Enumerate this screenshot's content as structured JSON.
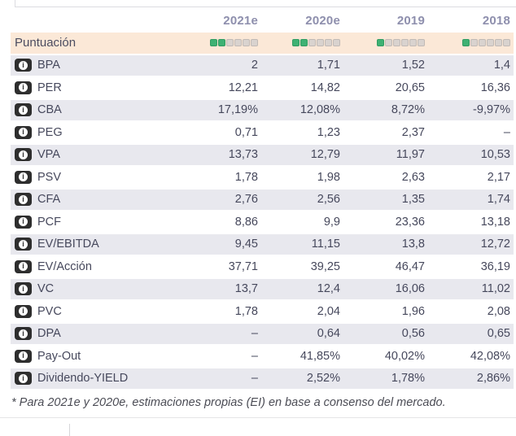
{
  "table": {
    "columns": [
      "2021e",
      "2020e",
      "2019",
      "2018"
    ],
    "score_row": {
      "label": "Puntuación",
      "max": 6,
      "scores": [
        2,
        2,
        1,
        1
      ]
    },
    "info_icon_glyph": "i",
    "rows": [
      {
        "label": "BPA",
        "values": [
          "2",
          "1,71",
          "1,52",
          "1,4"
        ]
      },
      {
        "label": "PER",
        "values": [
          "12,21",
          "14,82",
          "20,65",
          "16,36"
        ]
      },
      {
        "label": "CBA",
        "values": [
          "17,19%",
          "12,08%",
          "8,72%",
          "-9,97%"
        ]
      },
      {
        "label": "PEG",
        "values": [
          "0,71",
          "1,23",
          "2,37",
          "–"
        ]
      },
      {
        "label": "VPA",
        "values": [
          "13,73",
          "12,79",
          "11,97",
          "10,53"
        ]
      },
      {
        "label": "PSV",
        "values": [
          "1,78",
          "1,98",
          "2,63",
          "2,17"
        ]
      },
      {
        "label": "CFA",
        "values": [
          "2,76",
          "2,56",
          "1,35",
          "1,74"
        ]
      },
      {
        "label": "PCF",
        "values": [
          "8,86",
          "9,9",
          "23,36",
          "13,18"
        ]
      },
      {
        "label": "EV/EBITDA",
        "values": [
          "9,45",
          "11,15",
          "13,8",
          "12,72"
        ]
      },
      {
        "label": "EV/Acción",
        "values": [
          "37,71",
          "39,25",
          "46,47",
          "36,19"
        ]
      },
      {
        "label": "VC",
        "values": [
          "13,7",
          "12,4",
          "16,06",
          "11,02"
        ]
      },
      {
        "label": "PVC",
        "values": [
          "1,78",
          "2,04",
          "1,96",
          "2,08"
        ]
      },
      {
        "label": "DPA",
        "values": [
          "–",
          "0,64",
          "0,56",
          "0,65"
        ]
      },
      {
        "label": "Pay-Out",
        "values": [
          "–",
          "41,85%",
          "40,02%",
          "42,08%"
        ]
      },
      {
        "label": "Dividendo-YIELD",
        "values": [
          "–",
          "2,52%",
          "1,78%",
          "2,86%"
        ]
      }
    ]
  },
  "footnote": "* Para 2021e y 2020e, estimaciones propias (EI) en base a consenso del mercado.",
  "colors": {
    "score_filled": "#3eb173",
    "score_empty": "#d9d3cf",
    "score_row_bg": "#fbe8d7",
    "alt_row_bg": "#e8e8ee",
    "header_text": "#8e8fad",
    "body_text": "#46485c",
    "info_badge_bg": "#2e2e2e"
  }
}
